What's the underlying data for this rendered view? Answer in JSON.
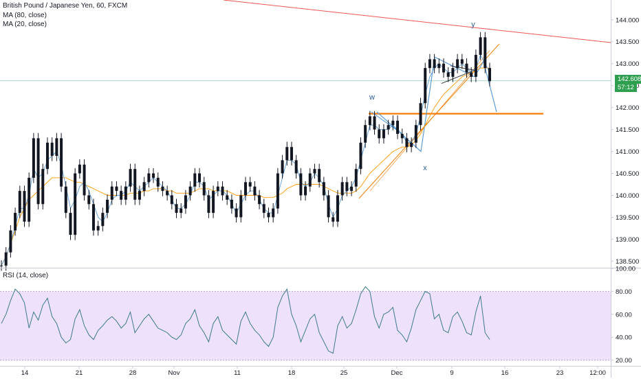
{
  "legend": {
    "title": "British Pound / Japanese Yen, 60, FXCM",
    "ma80": "MA (80, close)",
    "ma20": "MA (20, close)",
    "rsi": "RSI (14, close)"
  },
  "last_price": "142.608",
  "countdown": "57:12",
  "colors": {
    "candle": "#131722",
    "ma80": "#ff9800",
    "ma20": "#5b9bd5",
    "trendline": "#ef5350",
    "support": "#f57c00",
    "rsi_line": "#3d7a8c",
    "rsi_band": "#ede1fb",
    "last_price": "#2e9e4f"
  },
  "annotations": {
    "w": "w",
    "x": "x",
    "y": "y"
  },
  "chart_data": [
    {
      "type": "line",
      "title": "British Pound / Japanese Yen, 60, FXCM",
      "ylim": [
        138.35,
        144.45
      ],
      "y_ticks": [
        "138.500",
        "139.000",
        "139.500",
        "140.000",
        "140.500",
        "141.000",
        "141.500",
        "142.000",
        "142.500",
        "143.000",
        "143.500",
        "144.000"
      ],
      "x_ticks": [
        "14",
        "21",
        "28",
        "Nov",
        "11",
        "18",
        "25",
        "Dec",
        "9",
        "16",
        "23",
        "12:00"
      ],
      "series": [
        {
          "name": "",
          "style": "candles",
          "values": [
            138.4,
            138.7,
            139.2,
            139.6,
            140.1,
            139.4,
            140.4,
            141.3,
            139.8,
            140.6,
            141.2,
            140.9,
            141.3,
            140.2,
            139.6,
            139.1,
            140.5,
            140.7,
            140.0,
            139.8,
            139.2,
            139.3,
            139.6,
            139.9,
            140.2,
            140.1,
            139.9,
            140.2,
            140.6,
            139.9,
            140.1,
            140.3,
            140.5,
            140.4,
            140.2,
            140.1,
            140.0,
            139.8,
            139.6,
            139.7,
            140.0,
            140.2,
            140.5,
            140.3,
            140.0,
            139.6,
            140.1,
            140.2,
            140.0,
            139.9,
            139.7,
            139.5,
            140.0,
            140.3,
            140.2,
            140.0,
            139.8,
            139.6,
            139.5,
            139.7,
            140.5,
            140.8,
            141.1,
            140.8,
            140.5,
            140.0,
            140.2,
            140.5,
            140.6,
            140.3,
            140.0,
            139.5,
            139.4,
            140.0,
            140.3,
            140.1,
            140.2,
            140.6,
            141.2,
            141.6,
            141.8,
            141.5,
            141.3,
            141.5,
            141.6,
            141.7,
            141.4,
            141.3,
            141.1,
            141.2,
            141.6,
            142.1,
            142.9,
            143.1,
            142.9,
            143.0,
            142.8,
            142.7,
            142.9,
            143.1,
            143.0,
            142.8,
            142.7,
            143.2,
            143.6,
            142.9,
            142.6
          ]
        },
        {
          "name": "MA (80, close)",
          "values": [
            138.4,
            138.6,
            138.9,
            139.2,
            139.5,
            139.7,
            139.9,
            140.0,
            140.1,
            140.2,
            140.3,
            140.4,
            140.4,
            140.4,
            140.4,
            140.35,
            140.3,
            140.3,
            140.25,
            140.2,
            140.15,
            140.1,
            140.05,
            140.0,
            140.0,
            140.0,
            140.0,
            140.0,
            140.05,
            140.05,
            140.05,
            140.1,
            140.1,
            140.15,
            140.15,
            140.15,
            140.1,
            140.1,
            140.05,
            140.05,
            140.05,
            140.05,
            140.1,
            140.15,
            140.15,
            140.15,
            140.1,
            140.1,
            140.1,
            140.1,
            140.05,
            140.0,
            140.0,
            140.0,
            140.0,
            140.0,
            140.0,
            139.95,
            139.95,
            139.95,
            140.0,
            140.05,
            140.15,
            140.2,
            140.25,
            140.25,
            140.25,
            140.25,
            140.25,
            140.25,
            140.2,
            140.15,
            140.1,
            140.05,
            140.05,
            140.05,
            140.05,
            140.1,
            140.2,
            140.35,
            140.5,
            140.6,
            140.7,
            140.8,
            140.9,
            141.0,
            141.05,
            141.1,
            141.1,
            141.15,
            141.25,
            141.4,
            141.6,
            141.8,
            142.0,
            142.15,
            142.3,
            142.4,
            142.5,
            142.6,
            142.7,
            142.75,
            142.8,
            142.85,
            142.9,
            142.9,
            142.9
          ]
        },
        {
          "name": "MA (20, close)",
          "values": [
            138.4,
            138.6,
            138.9,
            139.3,
            139.7,
            139.7,
            140.0,
            140.6,
            140.4,
            140.5,
            140.8,
            140.9,
            141.0,
            140.7,
            140.2,
            139.7,
            139.9,
            140.2,
            140.3,
            140.1,
            139.8,
            139.5,
            139.4,
            139.6,
            139.9,
            140.0,
            140.0,
            140.1,
            140.3,
            140.2,
            140.1,
            140.2,
            140.3,
            140.4,
            140.3,
            140.2,
            140.1,
            139.9,
            139.7,
            139.7,
            139.8,
            140.0,
            140.3,
            140.3,
            140.2,
            139.9,
            140.0,
            140.1,
            140.1,
            140.0,
            139.8,
            139.6,
            139.8,
            140.0,
            140.1,
            140.1,
            139.9,
            139.7,
            139.6,
            139.6,
            140.0,
            140.4,
            140.8,
            140.8,
            140.7,
            140.3,
            140.2,
            140.3,
            140.5,
            140.4,
            140.2,
            139.8,
            139.5,
            139.7,
            140.0,
            140.1,
            140.2,
            140.4,
            140.8,
            141.2,
            141.6,
            141.6,
            141.5,
            141.5,
            141.5,
            141.6,
            141.5,
            141.4,
            141.2,
            141.2,
            141.4,
            141.8,
            142.3,
            142.7,
            142.9,
            143.0,
            142.9,
            142.8,
            142.8,
            142.9,
            143.0,
            142.9,
            142.8,
            142.9,
            143.2,
            143.0,
            142.8
          ]
        }
      ]
    },
    {
      "type": "line",
      "title": "RSI (14, close)",
      "ylim": [
        15,
        100
      ],
      "y_ticks": [
        "20.00",
        "40.00",
        "60.00",
        "80.00",
        "100.00"
      ],
      "bands": [
        20,
        80
      ],
      "series": [
        {
          "name": "RSI (14, close)",
          "values": [
            52,
            60,
            72,
            82,
            78,
            70,
            48,
            62,
            55,
            68,
            74,
            58,
            52,
            40,
            35,
            38,
            56,
            64,
            50,
            42,
            38,
            46,
            50,
            55,
            58,
            54,
            48,
            52,
            62,
            44,
            50,
            56,
            60,
            54,
            48,
            46,
            44,
            40,
            38,
            42,
            52,
            56,
            64,
            50,
            44,
            36,
            52,
            58,
            46,
            42,
            38,
            34,
            54,
            62,
            52,
            46,
            42,
            36,
            32,
            40,
            66,
            76,
            82,
            60,
            50,
            36,
            46,
            56,
            60,
            44,
            36,
            28,
            26,
            50,
            58,
            48,
            52,
            64,
            78,
            84,
            80,
            58,
            48,
            60,
            62,
            66,
            46,
            42,
            36,
            48,
            64,
            72,
            80,
            78,
            56,
            60,
            46,
            44,
            58,
            62,
            54,
            44,
            42,
            62,
            76,
            44,
            38
          ]
        }
      ]
    }
  ]
}
